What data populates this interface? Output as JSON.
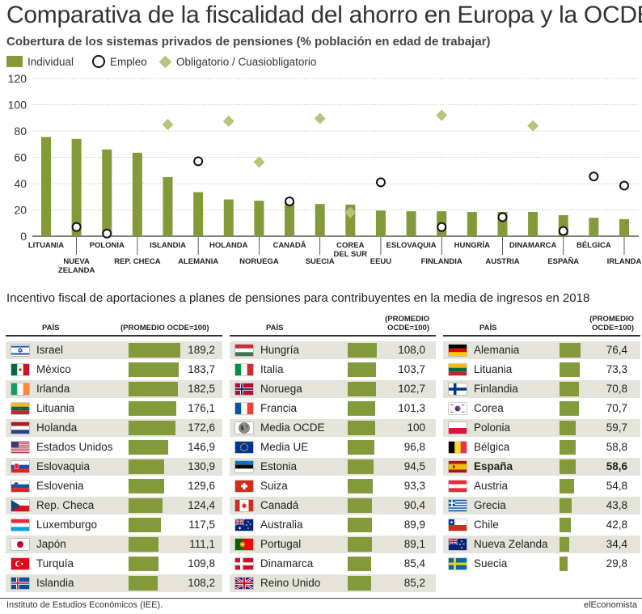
{
  "title": "Comparativa de la fiscalidad del ahorro en Europa y la OCDE",
  "chart1_title": "Cobertura de los sistemas privados de pensiones (% población en edad de trabajar)",
  "colors": {
    "bar": "#829a3a",
    "marker": "#b5c47a",
    "shade": "#e4e4da"
  },
  "chart_data": [
    {
      "type": "bar",
      "legend_placement": "top-left",
      "ylim": [
        0,
        120
      ],
      "yticks": [
        0,
        20,
        40,
        60,
        80,
        100,
        120
      ],
      "grid": true,
      "legend": [
        "Individual",
        "Empleo",
        "Obligatorio / Cuasiobligatorio"
      ],
      "categories": [
        {
          "lines": [
            "LITUANIA"
          ]
        },
        {
          "lines": [
            "NUEVA",
            "ZELANDA"
          ]
        },
        {
          "lines": [
            "POLONIA"
          ]
        },
        {
          "lines": [
            "REP. CHECA"
          ]
        },
        {
          "lines": [
            "ISLANDIA"
          ]
        },
        {
          "lines": [
            "ALEMANIA"
          ]
        },
        {
          "lines": [
            "HOLANDA"
          ]
        },
        {
          "lines": [
            "NORUEGA"
          ]
        },
        {
          "lines": [
            "CANADÁ"
          ]
        },
        {
          "lines": [
            "SUECIA"
          ]
        },
        {
          "lines": [
            "COREA",
            "DEL SUR"
          ]
        },
        {
          "lines": [
            "EEUU"
          ]
        },
        {
          "lines": [
            "ESLOVAQUIA"
          ]
        },
        {
          "lines": [
            "FINLANDIA"
          ]
        },
        {
          "lines": [
            "HUNGRÍA"
          ]
        },
        {
          "lines": [
            "AUSTRIA"
          ]
        },
        {
          "lines": [
            "DINAMARCA"
          ]
        },
        {
          "lines": [
            "ESPAÑA"
          ]
        },
        {
          "lines": [
            "BÉLGICA"
          ]
        },
        {
          "lines": [
            "IRLANDA"
          ]
        }
      ],
      "series": [
        {
          "name": "Individual",
          "values": [
            75.5,
            74,
            66,
            63.5,
            45,
            33.5,
            28,
            27,
            26,
            24.5,
            24,
            19.5,
            19,
            19,
            18.5,
            18.5,
            18.5,
            16,
            14,
            13
          ]
        },
        {
          "name": "Empleo",
          "values": [
            null,
            7,
            2,
            null,
            null,
            57,
            null,
            null,
            26.5,
            null,
            null,
            41,
            null,
            7,
            null,
            14.5,
            null,
            4,
            45.5,
            38.5
          ]
        },
        {
          "name": "Obligatorio / Cuasiobligatorio",
          "values": [
            null,
            null,
            null,
            null,
            85,
            null,
            87.5,
            56.5,
            null,
            89.5,
            18,
            null,
            null,
            92,
            null,
            null,
            84,
            null,
            null,
            null
          ]
        }
      ]
    },
    {
      "type": "table",
      "title": "Incentivo fiscal de aportaciones a planes de pensiones para contribuyentes en la media de ingresos en 2018",
      "header_country": "PAÍS",
      "header_value_a": "(PROMEDIO OCDE=100)",
      "header_value_b1": "(PROMEDIO",
      "header_value_b2": "OCDE=100)",
      "max": 190,
      "columns": [
        [
          {
            "name": "Israel",
            "value": 189.2,
            "label": "189,2",
            "flag": "israel"
          },
          {
            "name": "México",
            "value": 183.7,
            "label": "183,7",
            "flag": "mexico"
          },
          {
            "name": "Irlanda",
            "value": 182.5,
            "label": "182,5",
            "flag": "ireland"
          },
          {
            "name": "Lituania",
            "value": 176.1,
            "label": "176,1",
            "flag": "lithuania"
          },
          {
            "name": "Holanda",
            "value": 172.6,
            "label": "172,6",
            "flag": "netherlands"
          },
          {
            "name": "Estados Unidos",
            "value": 146.9,
            "label": "146,9",
            "flag": "usa"
          },
          {
            "name": "Eslovaquia",
            "value": 130.9,
            "label": "130,9",
            "flag": "slovakia"
          },
          {
            "name": "Eslovenia",
            "value": 129.6,
            "label": "129,6",
            "flag": "slovenia"
          },
          {
            "name": "Rep. Checa",
            "value": 124.4,
            "label": "124,4",
            "flag": "czech"
          },
          {
            "name": "Luxemburgo",
            "value": 117.5,
            "label": "117,5",
            "flag": "luxembourg"
          },
          {
            "name": "Japón",
            "value": 111.1,
            "label": "111,1",
            "flag": "japan"
          },
          {
            "name": "Turquía",
            "value": 109.8,
            "label": "109,8",
            "flag": "turkey"
          },
          {
            "name": "Islandia",
            "value": 108.2,
            "label": "108,2",
            "flag": "iceland"
          }
        ],
        [
          {
            "name": "Hungría",
            "value": 108.0,
            "label": "108,0",
            "flag": "hungary"
          },
          {
            "name": "Italia",
            "value": 103.7,
            "label": "103,7",
            "flag": "italy"
          },
          {
            "name": "Noruega",
            "value": 102.7,
            "label": "102,7",
            "flag": "norway"
          },
          {
            "name": "Francia",
            "value": 101.3,
            "label": "101,3",
            "flag": "france"
          },
          {
            "name": "Media OCDE",
            "value": 100,
            "label": "100",
            "flag": "globe"
          },
          {
            "name": "Media UE",
            "value": 96.8,
            "label": "96,8",
            "flag": "eu"
          },
          {
            "name": "Estonia",
            "value": 94.5,
            "label": "94,5",
            "flag": "estonia"
          },
          {
            "name": "Suiza",
            "value": 93.3,
            "label": "93,3",
            "flag": "switzerland"
          },
          {
            "name": "Canadá",
            "value": 90.4,
            "label": "90,4",
            "flag": "canada"
          },
          {
            "name": "Australia",
            "value": 89.9,
            "label": "89,9",
            "flag": "australia"
          },
          {
            "name": "Portugal",
            "value": 89.1,
            "label": "89,1",
            "flag": "portugal"
          },
          {
            "name": "Dinamarca",
            "value": 85.4,
            "label": "85,4",
            "flag": "denmark"
          },
          {
            "name": "Reino Unido",
            "value": 85.2,
            "label": "85,2",
            "flag": "uk"
          }
        ],
        [
          {
            "name": "Alemania",
            "value": 76.4,
            "label": "76,4",
            "flag": "germany"
          },
          {
            "name": "Lituania",
            "value": 73.3,
            "label": "73,3",
            "flag": "lithuania"
          },
          {
            "name": "Finlandia",
            "value": 70.8,
            "label": "70,8",
            "flag": "finland"
          },
          {
            "name": "Corea",
            "value": 70.7,
            "label": "70,7",
            "flag": "korea"
          },
          {
            "name": "Polonia",
            "value": 59.7,
            "label": "59,7",
            "flag": "poland"
          },
          {
            "name": "Bélgica",
            "value": 58.8,
            "label": "58,8",
            "flag": "belgium"
          },
          {
            "name": "España",
            "value": 58.6,
            "label": "58,6",
            "flag": "spain",
            "bold": true
          },
          {
            "name": "Austria",
            "value": 54.8,
            "label": "54,8",
            "flag": "austria"
          },
          {
            "name": "Grecia",
            "value": 43.8,
            "label": "43,8",
            "flag": "greece"
          },
          {
            "name": "Chile",
            "value": 42.8,
            "label": "42,8",
            "flag": "chile"
          },
          {
            "name": "Nueva Zelanda",
            "value": 34.4,
            "label": "34,4",
            "flag": "newzealand"
          },
          {
            "name": "Suecia",
            "value": 29.8,
            "label": "29,8",
            "flag": "sweden"
          }
        ]
      ]
    }
  ],
  "source": "Instituto de Estudios Económicos (IEE).",
  "brand": "elEconomista"
}
